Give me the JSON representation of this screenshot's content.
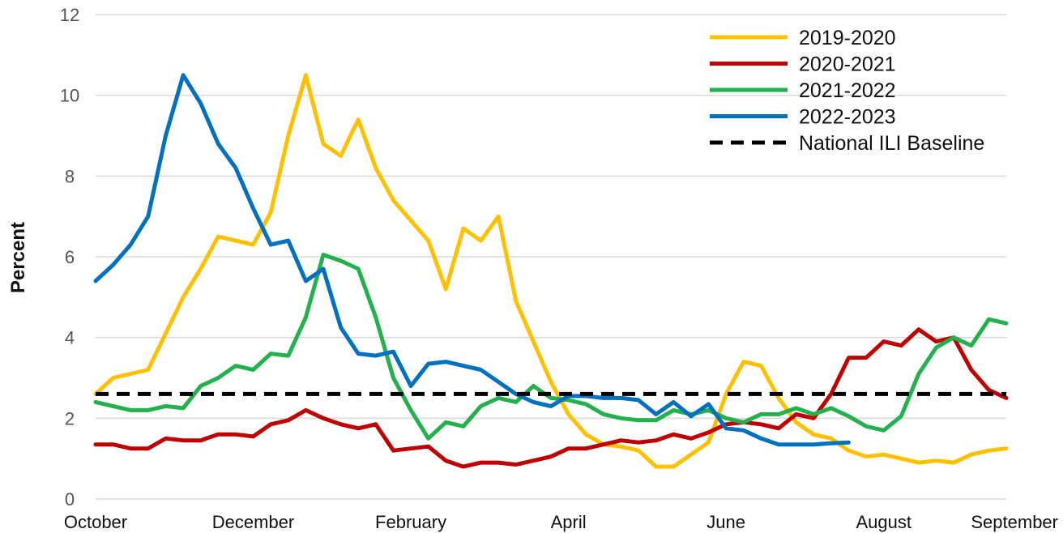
{
  "chart_data": {
    "type": "line",
    "title": "",
    "xlabel": "",
    "ylabel": "Percent",
    "ylim": [
      0,
      12
    ],
    "yticks": [
      0,
      2,
      4,
      6,
      8,
      10,
      12
    ],
    "grid": true,
    "legend_position": "top-right",
    "x_tick_labels": [
      "October",
      "December",
      "February",
      "April",
      "June",
      "August",
      "September"
    ],
    "x_tick_weeks": [
      0,
      9,
      18,
      27,
      36,
      45,
      52
    ],
    "series": [
      {
        "name": "2019-2020",
        "color": "#FFC000",
        "style": "solid",
        "values": [
          2.6,
          3.0,
          3.1,
          3.2,
          4.1,
          5.0,
          5.7,
          6.5,
          6.4,
          6.3,
          7.1,
          9.0,
          10.5,
          8.8,
          8.5,
          9.4,
          8.2,
          7.4,
          6.9,
          6.4,
          5.2,
          6.7,
          6.4,
          7.0,
          4.9,
          3.9,
          2.9,
          2.1,
          1.6,
          1.35,
          1.3,
          1.2,
          0.8,
          0.8,
          1.1,
          1.4,
          2.6,
          3.4,
          3.3,
          2.5,
          1.9,
          1.6,
          1.5,
          1.2,
          1.05,
          1.1,
          1.0,
          0.9,
          0.95,
          0.9,
          1.1,
          1.2,
          1.25
        ]
      },
      {
        "name": "2020-2021",
        "color": "#C00000",
        "style": "solid",
        "values": [
          1.35,
          1.35,
          1.25,
          1.25,
          1.5,
          1.45,
          1.45,
          1.6,
          1.6,
          1.55,
          1.85,
          1.95,
          2.2,
          2.0,
          1.85,
          1.75,
          1.85,
          1.2,
          1.25,
          1.3,
          0.95,
          0.8,
          0.9,
          0.9,
          0.85,
          0.95,
          1.05,
          1.25,
          1.25,
          1.35,
          1.45,
          1.4,
          1.45,
          1.6,
          1.5,
          1.65,
          1.85,
          1.9,
          1.85,
          1.75,
          2.1,
          2.0,
          2.6,
          3.5,
          3.5,
          3.9,
          3.8,
          4.2,
          3.9,
          4.0,
          3.2,
          2.7,
          2.5
        ]
      },
      {
        "name": "2021-2022",
        "color": "#22B14C",
        "style": "solid",
        "values": [
          2.4,
          2.3,
          2.2,
          2.2,
          2.3,
          2.25,
          2.8,
          3.0,
          3.3,
          3.2,
          3.6,
          3.55,
          4.5,
          6.05,
          5.9,
          5.7,
          4.5,
          3.0,
          2.2,
          1.5,
          1.9,
          1.8,
          2.3,
          2.5,
          2.4,
          2.8,
          2.5,
          2.45,
          2.35,
          2.1,
          2.0,
          1.95,
          1.95,
          2.2,
          2.1,
          2.2,
          2.0,
          1.9,
          2.1,
          2.1,
          2.25,
          2.1,
          2.25,
          2.05,
          1.8,
          1.7,
          2.05,
          3.1,
          3.75,
          4.0,
          3.8,
          4.45,
          4.35
        ]
      },
      {
        "name": "2022-2023",
        "color": "#0070C0",
        "style": "solid",
        "values": [
          5.4,
          5.8,
          6.3,
          7.0,
          9.0,
          10.5,
          9.8,
          8.8,
          8.2,
          7.2,
          6.3,
          6.4,
          5.4,
          5.7,
          4.25,
          3.6,
          3.55,
          3.65,
          2.8,
          3.35,
          3.4,
          3.3,
          3.2,
          2.9,
          2.6,
          2.4,
          2.3,
          2.55,
          2.55,
          2.5,
          2.5,
          2.45,
          2.1,
          2.4,
          2.05,
          2.35,
          1.75,
          1.7,
          1.5,
          1.35,
          1.35,
          1.35,
          1.38,
          1.4,
          null,
          null,
          null,
          null,
          null,
          null,
          null,
          null,
          null
        ]
      },
      {
        "name": "National ILI Baseline",
        "color": "#000000",
        "style": "dashed",
        "values": [
          2.6,
          2.6
        ]
      }
    ]
  }
}
